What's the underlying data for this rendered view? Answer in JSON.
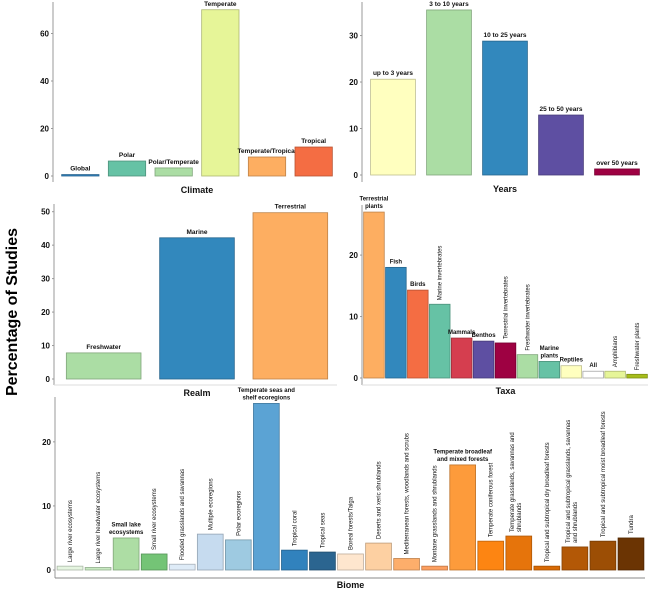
{
  "figure": {
    "ylabel": "Percentage  of Studies"
  },
  "chart_data": [
    {
      "type": "bar",
      "id": "climate",
      "title": "",
      "xlabel": "Climate",
      "ylabel": "Percentage of Studies",
      "ylim": [
        0,
        72
      ],
      "yticks": [
        0,
        20,
        40,
        60
      ],
      "categories": [
        "Global",
        "Polar",
        "Polar/Temperate",
        "Temperate",
        "Temperate/Tropical",
        "Tropical"
      ],
      "values": [
        0.6,
        6.3,
        3.4,
        70,
        8.0,
        12.2
      ],
      "colors": [
        "#3182bd",
        "#66c2a5",
        "#abdda4",
        "#e6f598",
        "#fdae61",
        "#f46d43"
      ],
      "label_rotation": [
        0,
        0,
        0,
        0,
        0,
        0
      ],
      "grid": false
    },
    {
      "type": "bar",
      "id": "years",
      "title": "",
      "xlabel": "Years",
      "ylabel": "Percentage of Studies",
      "ylim": [
        0,
        37
      ],
      "yticks": [
        0,
        10,
        20,
        30
      ],
      "categories": [
        "up to 3 years",
        "3 to 10 years",
        "10 to 25 years",
        "25 to 50 years",
        "over 50 years"
      ],
      "values": [
        20.6,
        35.5,
        28.8,
        12.9,
        1.3
      ],
      "colors": [
        "#ffffbf",
        "#abdda4",
        "#3288bd",
        "#5e4fa2",
        "#9e0142"
      ],
      "label_rotation": [
        0,
        0,
        0,
        0,
        0
      ],
      "grid": false
    },
    {
      "type": "bar",
      "id": "realm",
      "title": "",
      "xlabel": "Realm",
      "ylabel": "Percentage of Studies",
      "ylim": [
        0,
        52
      ],
      "yticks": [
        0,
        10,
        20,
        30,
        40,
        50
      ],
      "categories": [
        "Freshwater",
        "Marine",
        "Terrestrial"
      ],
      "values": [
        7.8,
        42.2,
        49.7
      ],
      "colors": [
        "#abdda4",
        "#3288bd",
        "#fdae61"
      ],
      "label_rotation": [
        0,
        0,
        0
      ],
      "grid": false
    },
    {
      "type": "bar",
      "id": "taxa",
      "title": "",
      "xlabel": "Taxa",
      "ylabel": "Percentage of Studies",
      "ylim": [
        0,
        27.5
      ],
      "yticks": [
        0,
        10,
        20
      ],
      "categories": [
        "Terrestrial plants",
        "Fish",
        "Birds",
        "Marine invertebrates",
        "Mammals",
        "Benthos",
        "Terrestrial invertebrates",
        "Freshwater invertebrates",
        "Marine plants",
        "Reptiles",
        "All",
        "Amphibians",
        "Freshwater plants"
      ],
      "values": [
        27.0,
        18.0,
        14.3,
        12.0,
        6.5,
        6.0,
        5.7,
        3.8,
        2.7,
        2.0,
        1.1,
        1.1,
        0.6
      ],
      "colors": [
        "#fdae61",
        "#3288bd",
        "#f46d43",
        "#66c2a5",
        "#d53e4f",
        "#5e4fa2",
        "#9e0142",
        "#abdda4",
        "#66c2a5",
        "#ffffbf",
        "#ffffff",
        "#e6f598",
        "#a6bd1a"
      ],
      "label_rotation": [
        0,
        0,
        0,
        90,
        0,
        0,
        90,
        90,
        0,
        0,
        0,
        90,
        90
      ],
      "grid": false
    },
    {
      "type": "bar",
      "id": "biome",
      "title": "",
      "xlabel": "Biome",
      "ylabel": "Percentage of Studies",
      "ylim": [
        0,
        27
      ],
      "yticks": [
        0,
        10,
        20
      ],
      "categories": [
        "Large river ecosystems",
        "Large river headwater ecosystems",
        "Small lake ecosystems",
        "Small river ecosystems",
        "Flooded grasslands and savannas",
        "Multiple ecoregions",
        "Polar ecoregions",
        "Temperate seas and shelf ecoregions",
        "Tropical coral",
        "Tropical seas",
        "Boreal forests/Taiga",
        "Deserts and xeric shrublands",
        "Mediterranean forests, woodlands and scrubs",
        "Montane grasslands and shrublands",
        "Temperate broadleaf and mixed forests",
        "Temperate coniferous forest",
        "Temperate grasslands, savannas and shrublands",
        "Tropical and subtropical dry broadleaf forests",
        "Tropical and subtropical grasslands, savannas and shrublands",
        "Tropical and subtropical moist broadleaf forests",
        "Tundra"
      ],
      "values": [
        0.6,
        0.4,
        5.0,
        2.5,
        0.9,
        5.6,
        4.7,
        26.0,
        3.1,
        2.8,
        2.5,
        4.2,
        1.8,
        0.6,
        16.4,
        4.5,
        5.3,
        0.6,
        3.6,
        4.5,
        5.0
      ],
      "colors": [
        "#e5f5e0",
        "#c7e9c0",
        "#addda4",
        "#74c476",
        "#deebf7",
        "#c6dbef",
        "#9ecae1",
        "#5ba3d4",
        "#3182bd",
        "#2b6590",
        "#fee6ce",
        "#fdd0a2",
        "#fdae6b",
        "#fd9f5f",
        "#fd9b3b",
        "#fd8512",
        "#e6740b",
        "#d96a05",
        "#b35806",
        "#9c4e05",
        "#6b3403"
      ],
      "label_rotation": [
        90,
        90,
        0,
        90,
        90,
        90,
        90,
        0,
        90,
        90,
        90,
        90,
        90,
        90,
        0,
        90,
        90,
        90,
        90,
        90,
        90
      ],
      "label_lines": {
        "2": [
          "Small lake",
          "ecosystems"
        ],
        "7": [
          "Temperate seas and",
          "shelf ecoregions"
        ],
        "14": [
          "Temperate broadleaf",
          "and mixed forests"
        ],
        "16": [
          "Temperate grasslands, savannas and",
          "shrublands"
        ],
        "18": [
          "Tropical and subtropical grasslands, savannas",
          "and shrublands"
        ]
      },
      "grid": false
    }
  ]
}
